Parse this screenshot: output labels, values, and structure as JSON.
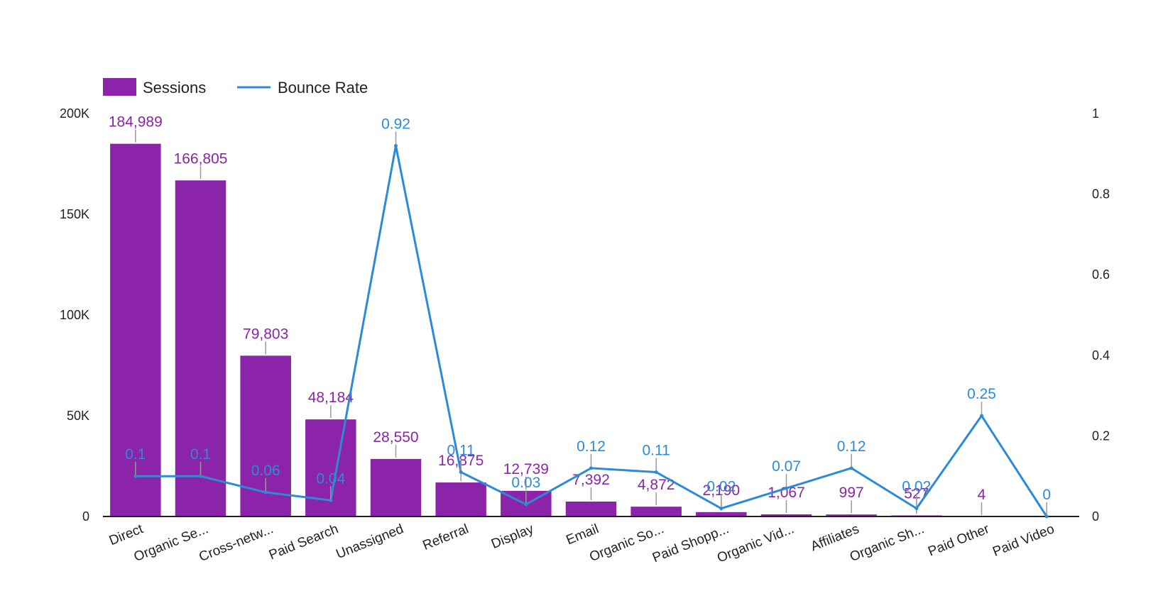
{
  "chart_data": {
    "type": "bar",
    "combo": "bar-line-dual-axis",
    "categories": [
      "Direct",
      "Organic Se...",
      "Cross-netw...",
      "Paid Search",
      "Unassigned",
      "Referral",
      "Display",
      "Email",
      "Organic So...",
      "Paid Shopp...",
      "Organic Vid...",
      "Affiliates",
      "Organic Sh...",
      "Paid Other",
      "Paid Video"
    ],
    "series": [
      {
        "name": "Sessions",
        "type": "bar",
        "axis": "left",
        "color": "#8b24a8",
        "values": [
          184989,
          166805,
          79803,
          48184,
          28550,
          16875,
          12739,
          7392,
          4872,
          2190,
          1067,
          997,
          527,
          4,
          0
        ],
        "labels": [
          "184,989",
          "166,805",
          "79,803",
          "48,184",
          "28,550",
          "16,875",
          "12,739",
          "7,392",
          "4,872",
          "2,190",
          "1,067",
          "997",
          "527",
          "4",
          ""
        ]
      },
      {
        "name": "Bounce Rate",
        "type": "line",
        "axis": "right",
        "color": "#2d8ad6",
        "values": [
          0.1,
          0.1,
          0.06,
          0.04,
          0.92,
          0.11,
          0.03,
          0.12,
          0.11,
          0.02,
          0.07,
          0.12,
          0.02,
          0.25,
          0
        ],
        "labels": [
          "0.1",
          "0.1",
          "0.06",
          "0.04",
          "0.92",
          "0.11",
          "0.03",
          "0.12",
          "0.11",
          "0.02",
          "0.07",
          "0.12",
          "0.02",
          "0.25",
          "0"
        ]
      }
    ],
    "y_left": {
      "ylim": [
        0,
        200000
      ],
      "ticks": [
        0,
        50000,
        100000,
        150000,
        200000
      ],
      "tick_labels": [
        "0",
        "50K",
        "100K",
        "150K",
        "200K"
      ]
    },
    "y_right": {
      "ylim": [
        0,
        1
      ],
      "ticks": [
        0,
        0.2,
        0.4,
        0.6,
        0.8,
        1
      ],
      "tick_labels": [
        "0",
        "0.2",
        "0.4",
        "0.6",
        "0.8",
        "1"
      ]
    },
    "title": "",
    "xlabel": "",
    "ylabel": "",
    "grid": false,
    "legend_position": "top-left"
  }
}
